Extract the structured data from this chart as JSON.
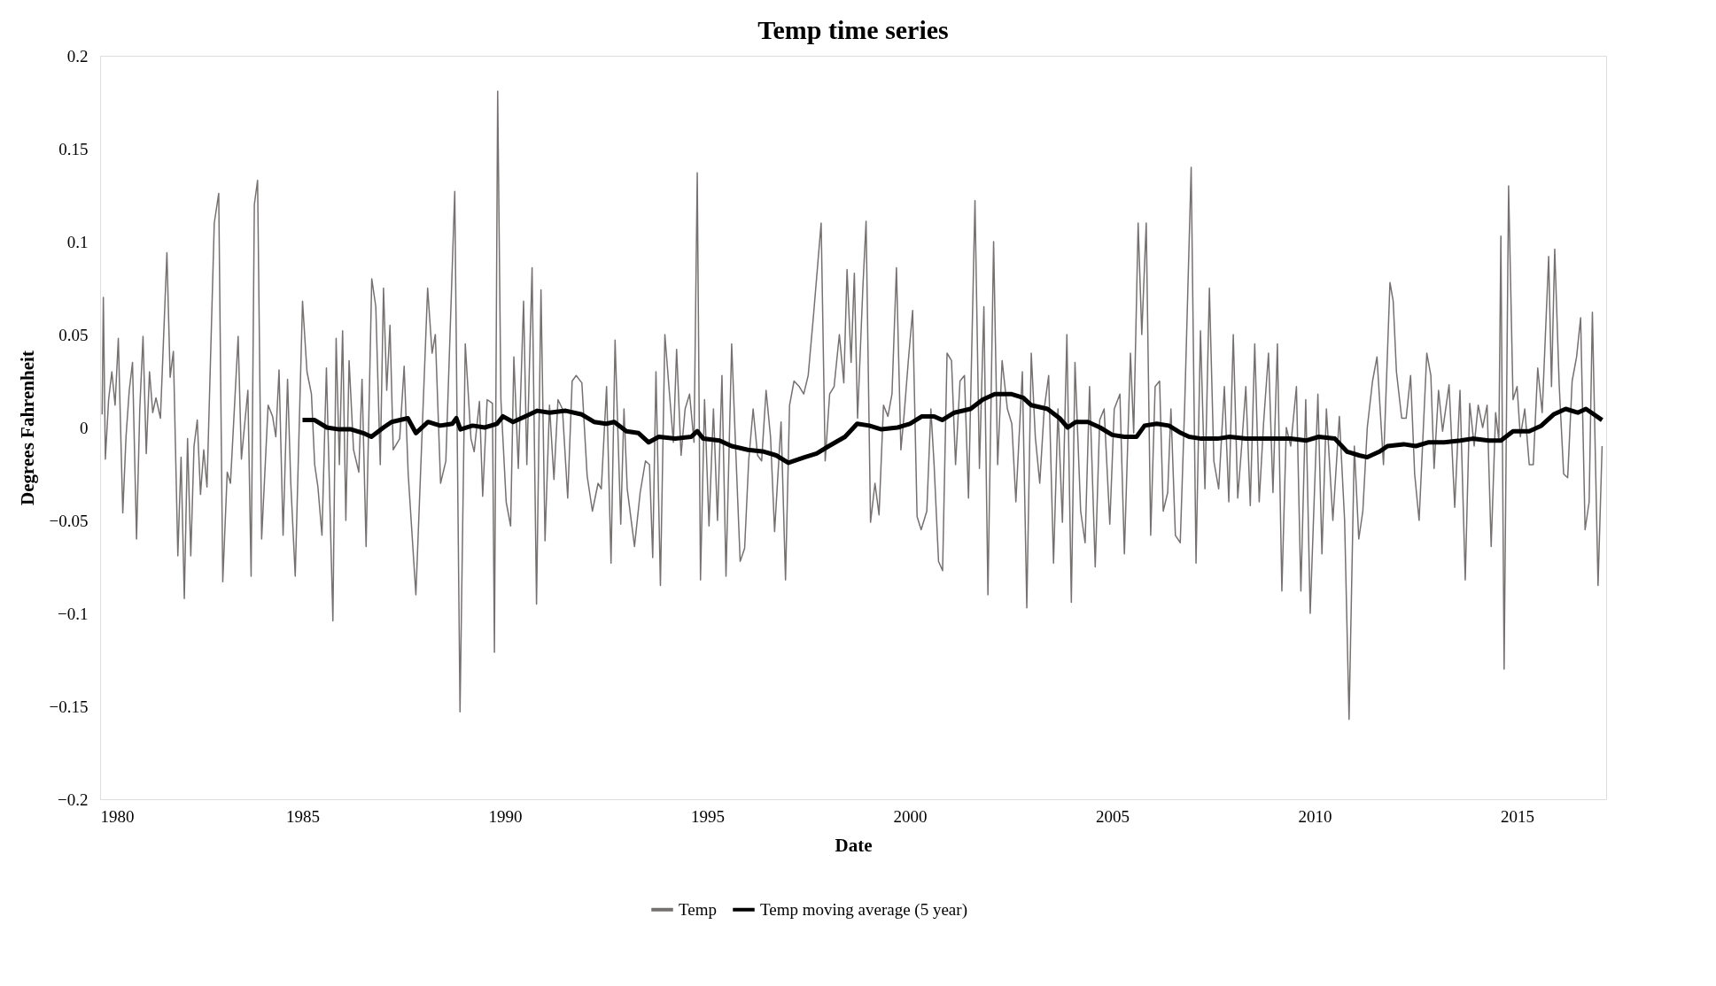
{
  "chart_data": {
    "type": "line",
    "title": "Temp time series",
    "xlabel": "Date",
    "ylabel": "Degrees Fahrenheit",
    "xlim": [
      1980,
      2017.2
    ],
    "xticks": [
      1980,
      1985,
      1990,
      1995,
      2000,
      2005,
      2010,
      2015
    ],
    "ylim": [
      -0.2,
      0.2
    ],
    "yticks": [
      -0.2,
      -0.15,
      -0.1,
      -0.05,
      0,
      0.05,
      0.1,
      0.15,
      0.2
    ],
    "grid": false,
    "legend": "bottom",
    "marker": "none",
    "line_style": "solid",
    "series": [
      {
        "name": "Temp",
        "color": "#767171",
        "x": [
          1980.05,
          1980.08,
          1980.13,
          1980.21,
          1980.29,
          1980.37,
          1980.45,
          1980.56,
          1980.64,
          1980.72,
          1980.8,
          1980.9,
          1980.98,
          1981.06,
          1981.14,
          1981.22,
          1981.3,
          1981.38,
          1981.49,
          1981.65,
          1981.73,
          1981.81,
          1981.92,
          1982.0,
          1982.08,
          1982.16,
          1982.24,
          1982.32,
          1982.4,
          1982.48,
          1982.56,
          1982.64,
          1982.82,
          1982.93,
          1983.03,
          1983.14,
          1983.22,
          1983.41,
          1983.49,
          1983.65,
          1983.73,
          1983.81,
          1983.89,
          1983.99,
          1984.15,
          1984.26,
          1984.34,
          1984.42,
          1984.52,
          1984.63,
          1984.71,
          1984.82,
          1985.0,
          1985.11,
          1985.22,
          1985.3,
          1985.38,
          1985.48,
          1985.59,
          1985.75,
          1985.83,
          1985.91,
          1985.99,
          1986.07,
          1986.15,
          1986.26,
          1986.39,
          1986.47,
          1986.57,
          1986.71,
          1986.81,
          1986.92,
          1987.0,
          1987.08,
          1987.16,
          1987.24,
          1987.4,
          1987.51,
          1987.61,
          1987.8,
          1988.09,
          1988.2,
          1988.28,
          1988.41,
          1988.54,
          1988.76,
          1988.89,
          1989.02,
          1989.16,
          1989.24,
          1989.37,
          1989.45,
          1989.56,
          1989.69,
          1989.74,
          1989.82,
          1989.9,
          1990.03,
          1990.14,
          1990.22,
          1990.33,
          1990.46,
          1990.54,
          1990.67,
          1990.78,
          1990.89,
          1990.99,
          1991.1,
          1991.21,
          1991.31,
          1991.42,
          1991.55,
          1991.66,
          1991.76,
          1991.9,
          1992.03,
          1992.16,
          1992.3,
          1992.38,
          1992.51,
          1992.62,
          1992.72,
          1992.86,
          1992.94,
          1993.02,
          1993.2,
          1993.34,
          1993.47,
          1993.57,
          1993.65,
          1993.73,
          1993.84,
          1993.95,
          1994.05,
          1994.16,
          1994.24,
          1994.35,
          1994.45,
          1994.56,
          1994.67,
          1994.75,
          1994.83,
          1994.93,
          1995.04,
          1995.15,
          1995.25,
          1995.36,
          1995.46,
          1995.6,
          1995.7,
          1995.81,
          1995.92,
          1996.02,
          1996.13,
          1996.24,
          1996.34,
          1996.45,
          1996.56,
          1996.66,
          1996.82,
          1996.93,
          1997.03,
          1997.14,
          1997.27,
          1997.38,
          1997.49,
          1997.62,
          1997.81,
          1997.91,
          1998.02,
          1998.13,
          1998.26,
          1998.37,
          1998.45,
          1998.55,
          1998.63,
          1998.71,
          1998.84,
          1998.92,
          1999.03,
          1999.14,
          1999.24,
          1999.35,
          1999.46,
          1999.56,
          1999.67,
          1999.78,
          1999.86,
          1999.96,
          2000.07,
          2000.18,
          2000.28,
          2000.42,
          2000.52,
          2000.6,
          2000.71,
          2000.81,
          2000.92,
          2001.03,
          2001.13,
          2001.24,
          2001.35,
          2001.45,
          2001.61,
          2001.72,
          2001.83,
          2001.93,
          2002.07,
          2002.17,
          2002.28,
          2002.41,
          2002.52,
          2002.62,
          2002.78,
          2002.89,
          2003.0,
          2003.1,
          2003.21,
          2003.32,
          2003.43,
          2003.55,
          2003.66,
          2003.77,
          2003.88,
          2003.99,
          2004.08,
          2004.22,
          2004.33,
          2004.44,
          2004.58,
          2004.69,
          2004.8,
          2004.94,
          2005.05,
          2005.19,
          2005.3,
          2005.45,
          2005.53,
          2005.64,
          2005.73,
          2005.84,
          2005.95,
          2006.06,
          2006.17,
          2006.26,
          2006.37,
          2006.45,
          2006.56,
          2006.68,
          2006.79,
          2006.95,
          2007.07,
          2007.18,
          2007.29,
          2007.4,
          2007.51,
          2007.63,
          2007.77,
          2007.88,
          2007.99,
          2008.1,
          2008.18,
          2008.3,
          2008.41,
          2008.52,
          2008.63,
          2008.74,
          2008.86,
          2008.97,
          2009.08,
          2009.19,
          2009.3,
          2009.41,
          2009.55,
          2009.66,
          2009.78,
          2009.89,
          2010.08,
          2010.18,
          2010.29,
          2010.45,
          2010.61,
          2010.74,
          2010.85,
          2010.98,
          2011.09,
          2011.19,
          2011.3,
          2011.43,
          2011.54,
          2011.7,
          2011.86,
          2011.94,
          2012.02,
          2012.15,
          2012.26,
          2012.37,
          2012.47,
          2012.58,
          2012.77,
          2012.87,
          2012.95,
          2013.06,
          2013.16,
          2013.32,
          2013.46,
          2013.59,
          2013.72,
          2013.83,
          2013.94,
          2014.04,
          2014.15,
          2014.26,
          2014.36,
          2014.47,
          2014.55,
          2014.6,
          2014.68,
          2014.79,
          2014.9,
          2015.0,
          2015.08,
          2015.19,
          2015.3,
          2015.4,
          2015.51,
          2015.62,
          2015.7,
          2015.78,
          2015.85,
          2015.93,
          2016.04,
          2016.15,
          2016.25,
          2016.36,
          2016.47,
          2016.57,
          2016.68,
          2016.78,
          2016.86,
          2017.0,
          2017.1
        ],
        "values": [
          0.007,
          0.07,
          -0.017,
          0.015,
          0.03,
          0.012,
          0.048,
          -0.046,
          -0.005,
          0.02,
          0.035,
          -0.06,
          0.01,
          0.049,
          -0.014,
          0.03,
          0.008,
          0.016,
          0.005,
          0.094,
          0.027,
          0.041,
          -0.069,
          -0.016,
          -0.092,
          -0.006,
          -0.069,
          -0.01,
          0.004,
          -0.036,
          -0.012,
          -0.032,
          0.11,
          0.126,
          -0.083,
          -0.024,
          -0.03,
          0.049,
          -0.017,
          0.02,
          -0.08,
          0.12,
          0.133,
          -0.06,
          0.012,
          0.006,
          -0.005,
          0.031,
          -0.058,
          0.026,
          -0.03,
          -0.08,
          0.068,
          0.03,
          0.018,
          -0.02,
          -0.032,
          -0.058,
          0.032,
          -0.104,
          0.048,
          -0.02,
          0.052,
          -0.05,
          0.036,
          -0.012,
          -0.024,
          0.026,
          -0.064,
          0.08,
          0.065,
          -0.02,
          0.075,
          0.02,
          0.055,
          -0.012,
          -0.006,
          0.033,
          -0.025,
          -0.09,
          0.075,
          0.04,
          0.05,
          -0.03,
          -0.018,
          0.127,
          -0.153,
          0.045,
          -0.006,
          -0.013,
          0.014,
          -0.037,
          0.015,
          0.013,
          -0.121,
          0.181,
          0.015,
          -0.04,
          -0.053,
          0.038,
          -0.022,
          0.068,
          -0.02,
          0.086,
          -0.095,
          0.074,
          -0.061,
          0.012,
          -0.028,
          0.015,
          0.01,
          -0.038,
          0.025,
          0.028,
          0.024,
          -0.026,
          -0.045,
          -0.03,
          -0.033,
          0.022,
          -0.073,
          0.047,
          -0.052,
          0.01,
          -0.033,
          -0.064,
          -0.035,
          -0.018,
          -0.02,
          -0.07,
          0.03,
          -0.085,
          0.05,
          0.022,
          -0.008,
          0.042,
          -0.015,
          0.01,
          0.018,
          -0.008,
          0.137,
          -0.082,
          0.015,
          -0.053,
          0.01,
          -0.05,
          0.028,
          -0.08,
          0.045,
          -0.012,
          -0.072,
          -0.065,
          -0.018,
          0.01,
          -0.015,
          -0.018,
          0.02,
          -0.005,
          -0.056,
          0.003,
          -0.082,
          0.012,
          0.025,
          0.022,
          0.018,
          0.028,
          0.06,
          0.11,
          -0.018,
          0.018,
          0.022,
          0.05,
          0.024,
          0.085,
          0.035,
          0.083,
          0.005,
          0.075,
          0.111,
          -0.051,
          -0.03,
          -0.047,
          0.012,
          0.006,
          0.018,
          0.086,
          -0.012,
          0.007,
          0.035,
          0.063,
          -0.048,
          -0.055,
          -0.045,
          0.01,
          -0.02,
          -0.072,
          -0.077,
          0.04,
          0.036,
          -0.02,
          0.025,
          0.028,
          -0.038,
          0.122,
          -0.022,
          0.065,
          -0.09,
          0.1,
          -0.02,
          0.036,
          0.01,
          0.002,
          -0.04,
          0.03,
          -0.097,
          0.04,
          -0.005,
          -0.03,
          0.01,
          0.028,
          -0.073,
          0.01,
          -0.051,
          0.05,
          -0.094,
          0.035,
          -0.045,
          -0.062,
          0.022,
          -0.075,
          0.004,
          0.01,
          -0.052,
          0.01,
          0.018,
          -0.068,
          0.04,
          -0.003,
          0.11,
          0.05,
          0.11,
          -0.058,
          0.022,
          0.025,
          -0.045,
          -0.035,
          0.01,
          -0.058,
          -0.062,
          0.012,
          0.14,
          -0.073,
          0.052,
          -0.033,
          0.075,
          -0.018,
          -0.033,
          0.022,
          -0.04,
          0.05,
          -0.038,
          -0.015,
          0.022,
          -0.042,
          0.045,
          -0.04,
          0.003,
          0.04,
          -0.035,
          0.045,
          -0.088,
          0.0,
          -0.01,
          0.022,
          -0.088,
          0.015,
          -0.1,
          0.018,
          -0.068,
          0.01,
          -0.05,
          0.006,
          -0.05,
          -0.157,
          -0.01,
          -0.06,
          -0.045,
          0.0,
          0.025,
          0.038,
          -0.02,
          0.078,
          0.068,
          0.03,
          0.005,
          0.005,
          0.028,
          -0.025,
          -0.05,
          0.04,
          0.028,
          -0.022,
          0.02,
          -0.002,
          0.023,
          -0.043,
          0.02,
          -0.082,
          0.013,
          -0.01,
          0.012,
          0.0,
          0.012,
          -0.064,
          0.008,
          -0.007,
          0.103,
          -0.13,
          0.13,
          0.015,
          0.022,
          -0.005,
          0.01,
          -0.02,
          -0.02,
          0.032,
          0.008,
          0.05,
          0.092,
          0.022,
          0.096,
          0.023,
          -0.025,
          -0.027,
          0.025,
          0.038,
          0.059,
          -0.055,
          -0.04,
          0.062,
          -0.085,
          -0.01
        ]
      },
      {
        "name": "Temp moving average (5 year)",
        "color": "#000000",
        "x": [
          1985.0,
          1985.3,
          1985.6,
          1985.9,
          1986.2,
          1986.5,
          1986.7,
          1987.0,
          1987.2,
          1987.6,
          1987.8,
          1988.1,
          1988.4,
          1988.7,
          1988.8,
          1988.9,
          1989.2,
          1989.5,
          1989.8,
          1989.95,
          1990.2,
          1990.5,
          1990.8,
          1991.1,
          1991.5,
          1991.9,
          1992.2,
          1992.5,
          1992.7,
          1993.0,
          1993.3,
          1993.55,
          1993.8,
          1994.2,
          1994.6,
          1994.75,
          1994.9,
          1995.3,
          1995.6,
          1996.0,
          1996.4,
          1996.7,
          1997.0,
          1997.4,
          1997.7,
          1998.0,
          1998.4,
          1998.7,
          1999.0,
          1999.3,
          1999.7,
          2000.0,
          2000.3,
          2000.6,
          2000.8,
          2001.1,
          2001.5,
          2001.8,
          2002.1,
          2002.5,
          2002.8,
          2003.0,
          2003.4,
          2003.7,
          2003.9,
          2004.1,
          2004.4,
          2004.7,
          2005.0,
          2005.3,
          2005.6,
          2005.8,
          2006.1,
          2006.4,
          2006.7,
          2006.9,
          2007.2,
          2007.6,
          2007.9,
          2008.3,
          2008.7,
          2009.0,
          2009.4,
          2009.8,
          2010.1,
          2010.5,
          2010.8,
          2011.1,
          2011.3,
          2011.6,
          2011.8,
          2012.2,
          2012.5,
          2012.8,
          2013.2,
          2013.6,
          2013.9,
          2014.3,
          2014.6,
          2014.9,
          2015.3,
          2015.6,
          2015.9,
          2016.2,
          2016.5,
          2016.7,
          2016.9,
          2017.1
        ],
        "values": [
          0.004,
          0.004,
          0.0,
          -0.001,
          -0.001,
          -0.003,
          -0.005,
          0.0,
          0.003,
          0.005,
          -0.003,
          0.003,
          0.001,
          0.002,
          0.005,
          -0.001,
          0.001,
          0.0,
          0.002,
          0.006,
          0.003,
          0.006,
          0.009,
          0.008,
          0.009,
          0.007,
          0.003,
          0.002,
          0.003,
          -0.002,
          -0.003,
          -0.008,
          -0.005,
          -0.006,
          -0.005,
          -0.002,
          -0.006,
          -0.007,
          -0.01,
          -0.012,
          -0.013,
          -0.015,
          -0.019,
          -0.016,
          -0.014,
          -0.01,
          -0.005,
          0.002,
          0.001,
          -0.001,
          0.0,
          0.002,
          0.006,
          0.006,
          0.004,
          0.008,
          0.01,
          0.015,
          0.018,
          0.018,
          0.016,
          0.012,
          0.01,
          0.005,
          0.0,
          0.003,
          0.003,
          0.0,
          -0.004,
          -0.005,
          -0.005,
          0.001,
          0.002,
          0.001,
          -0.003,
          -0.005,
          -0.006,
          -0.006,
          -0.005,
          -0.006,
          -0.006,
          -0.006,
          -0.006,
          -0.007,
          -0.005,
          -0.006,
          -0.013,
          -0.015,
          -0.016,
          -0.013,
          -0.01,
          -0.009,
          -0.01,
          -0.008,
          -0.008,
          -0.007,
          -0.006,
          -0.007,
          -0.007,
          -0.002,
          -0.002,
          0.001,
          0.007,
          0.01,
          0.008,
          0.01,
          0.007,
          0.004
        ]
      }
    ]
  }
}
